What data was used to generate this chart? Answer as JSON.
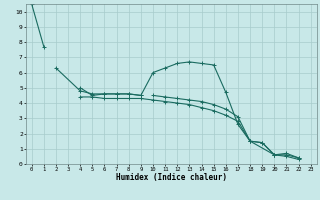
{
  "title": "",
  "xlabel": "Humidex (Indice chaleur)",
  "ylabel": "",
  "bg_color": "#c8e8e8",
  "grid_color": "#a8cccc",
  "line_color": "#1a6b60",
  "xlim": [
    -0.5,
    23.5
  ],
  "ylim": [
    0,
    10.5
  ],
  "xticks": [
    0,
    1,
    2,
    3,
    4,
    5,
    6,
    7,
    8,
    9,
    10,
    11,
    12,
    13,
    14,
    15,
    16,
    17,
    18,
    19,
    20,
    21,
    22,
    23
  ],
  "yticks": [
    0,
    1,
    2,
    3,
    4,
    5,
    6,
    7,
    8,
    9,
    10
  ],
  "series": [
    {
      "x": [
        0,
        1
      ],
      "y": [
        10.5,
        7.7
      ]
    },
    {
      "x": [
        2,
        4,
        5,
        6,
        7,
        8,
        9,
        10,
        11,
        12,
        13,
        14,
        15,
        16,
        17,
        18,
        20,
        21,
        22
      ],
      "y": [
        6.3,
        4.8,
        4.6,
        4.6,
        4.6,
        4.6,
        4.5,
        6.0,
        6.3,
        6.6,
        6.7,
        6.6,
        6.5,
        4.7,
        2.6,
        1.5,
        0.6,
        0.7,
        0.4
      ]
    },
    {
      "x": [
        4,
        5,
        6,
        7,
        8,
        9
      ],
      "y": [
        5.0,
        4.5,
        4.6,
        4.6,
        4.6,
        4.5
      ]
    },
    {
      "x": [
        4,
        5,
        6,
        7,
        8,
        9,
        10,
        11,
        12,
        13,
        14,
        15,
        16,
        17,
        18,
        19,
        20,
        21,
        22
      ],
      "y": [
        4.4,
        4.4,
        4.3,
        4.3,
        4.3,
        4.3,
        4.2,
        4.1,
        4.0,
        3.9,
        3.7,
        3.5,
        3.2,
        2.8,
        1.5,
        1.4,
        0.6,
        0.5,
        0.3
      ]
    },
    {
      "x": [
        10,
        11,
        12,
        13,
        14,
        15,
        16,
        17,
        18,
        19,
        20,
        21,
        22
      ],
      "y": [
        4.5,
        4.4,
        4.3,
        4.2,
        4.1,
        3.9,
        3.6,
        3.1,
        1.5,
        1.4,
        0.6,
        0.6,
        0.4
      ]
    }
  ]
}
